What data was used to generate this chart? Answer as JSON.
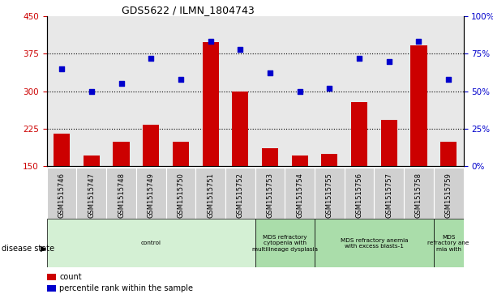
{
  "title": "GDS5622 / ILMN_1804743",
  "samples": [
    "GSM1515746",
    "GSM1515747",
    "GSM1515748",
    "GSM1515749",
    "GSM1515750",
    "GSM1515751",
    "GSM1515752",
    "GSM1515753",
    "GSM1515754",
    "GSM1515755",
    "GSM1515756",
    "GSM1515757",
    "GSM1515758",
    "GSM1515759"
  ],
  "counts": [
    215,
    172,
    198,
    232,
    198,
    398,
    300,
    185,
    172,
    175,
    278,
    242,
    392,
    198
  ],
  "percentile_ranks": [
    65,
    50,
    55,
    72,
    58,
    83,
    78,
    62,
    50,
    52,
    72,
    70,
    83,
    58
  ],
  "ylim_left": [
    150,
    450
  ],
  "ylim_right": [
    0,
    100
  ],
  "yticks_left": [
    150,
    225,
    300,
    375,
    450
  ],
  "yticks_right": [
    0,
    25,
    50,
    75,
    100
  ],
  "bar_color": "#cc0000",
  "scatter_color": "#0000cc",
  "background_color": "#ffffff",
  "plot_bg_color": "#e8e8e8",
  "groups": [
    {
      "label": "control",
      "start": 0,
      "end": 7,
      "color": "#d4f0d4"
    },
    {
      "label": "MDS refractory\ncytopenia with\nmultilineage dysplasia",
      "start": 7,
      "end": 9,
      "color": "#aaddaa"
    },
    {
      "label": "MDS refractory anemia\nwith excess blasts-1",
      "start": 9,
      "end": 13,
      "color": "#aaddaa"
    },
    {
      "label": "MDS\nrefractory ane\nmia with",
      "start": 13,
      "end": 14,
      "color": "#aaddaa"
    }
  ],
  "disease_state_label": "disease state",
  "legend_count_label": "count",
  "legend_pct_label": "percentile rank within the sample"
}
